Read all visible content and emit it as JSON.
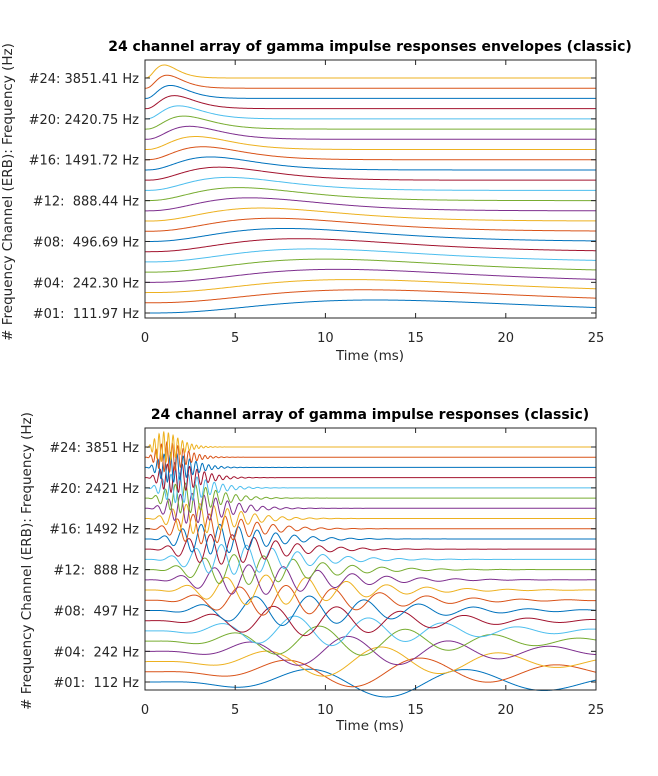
{
  "chart_data": [
    {
      "type": "line",
      "variant": "envelope",
      "title": "24 channel array of gamma impulse responses envelopes (classic)",
      "xlabel": "Time (ms)",
      "ylabel": "# Frequency Channel (ERB): Frequency (Hz)",
      "xlim": [
        0,
        25
      ],
      "xticks": [
        "0",
        "5",
        "10",
        "15",
        "20",
        "25"
      ],
      "ytick_labels": [
        "#01:  111.97 Hz",
        "#04:  242.30 Hz",
        "#08:  496.69 Hz",
        "#12:  888.44 Hz",
        "#16: 1491.72 Hz",
        "#20: 2420.75 Hz",
        "#24: 3851.41 Hz"
      ],
      "ytick_channels": [
        1,
        4,
        8,
        12,
        16,
        20,
        24
      ],
      "channels": 24,
      "grid": false
    },
    {
      "type": "line",
      "variant": "waveform",
      "title": "24 channel array of gamma impulse responses (classic)",
      "xlabel": "Time (ms)",
      "ylabel": "# Frequency Channel (ERB): Frequency (Hz)",
      "xlim": [
        0,
        25
      ],
      "xticks": [
        "0",
        "5",
        "10",
        "15",
        "20",
        "25"
      ],
      "ytick_labels": [
        "#01:  112 Hz",
        "#04:  242 Hz",
        "#08:  497 Hz",
        "#12:  888 Hz",
        "#16: 1492 Hz",
        "#20: 2421 Hz",
        "#24: 3851 Hz"
      ],
      "ytick_channels": [
        1,
        4,
        8,
        12,
        16,
        20,
        24
      ],
      "channels": 24,
      "grid": false
    }
  ],
  "colors": [
    "#0072BD",
    "#D95319",
    "#EDB120",
    "#7E2F8E",
    "#77AC30",
    "#4DBEEE",
    "#A2142F"
  ]
}
